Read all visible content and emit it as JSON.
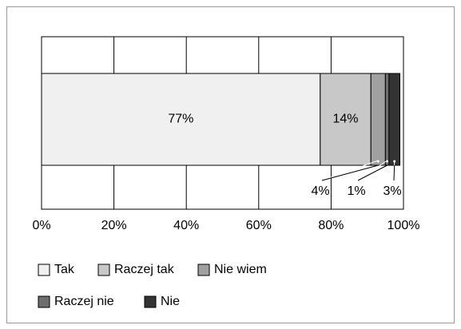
{
  "chart_data": {
    "type": "stacked_hbar",
    "series": [
      {
        "name": "Tak",
        "color": "#f0f0f0",
        "values": [
          77
        ],
        "value_labels": [
          "77%"
        ]
      },
      {
        "name": "Raczej tak",
        "color": "#c8c8c8",
        "values": [
          14
        ],
        "value_labels": [
          "14%"
        ]
      },
      {
        "name": "Nie wiem",
        "color": "#a0a0a0",
        "values": [
          4
        ],
        "value_labels": [
          "4%"
        ]
      },
      {
        "name": "Raczej nie",
        "color": "#6e6e6e",
        "values": [
          1
        ],
        "value_labels": [
          "1%"
        ]
      },
      {
        "name": "Nie",
        "color": "#333333",
        "values": [
          3
        ],
        "value_labels": [
          "3%"
        ]
      }
    ],
    "xlim": [
      0,
      100
    ],
    "xticks": [
      {
        "value": 0,
        "label": "0%"
      },
      {
        "value": 20,
        "label": "20%"
      },
      {
        "value": 40,
        "label": "40%"
      },
      {
        "value": 60,
        "label": "60%"
      },
      {
        "value": 80,
        "label": "80%"
      },
      {
        "value": 100,
        "label": "100%"
      }
    ],
    "grid": true
  }
}
